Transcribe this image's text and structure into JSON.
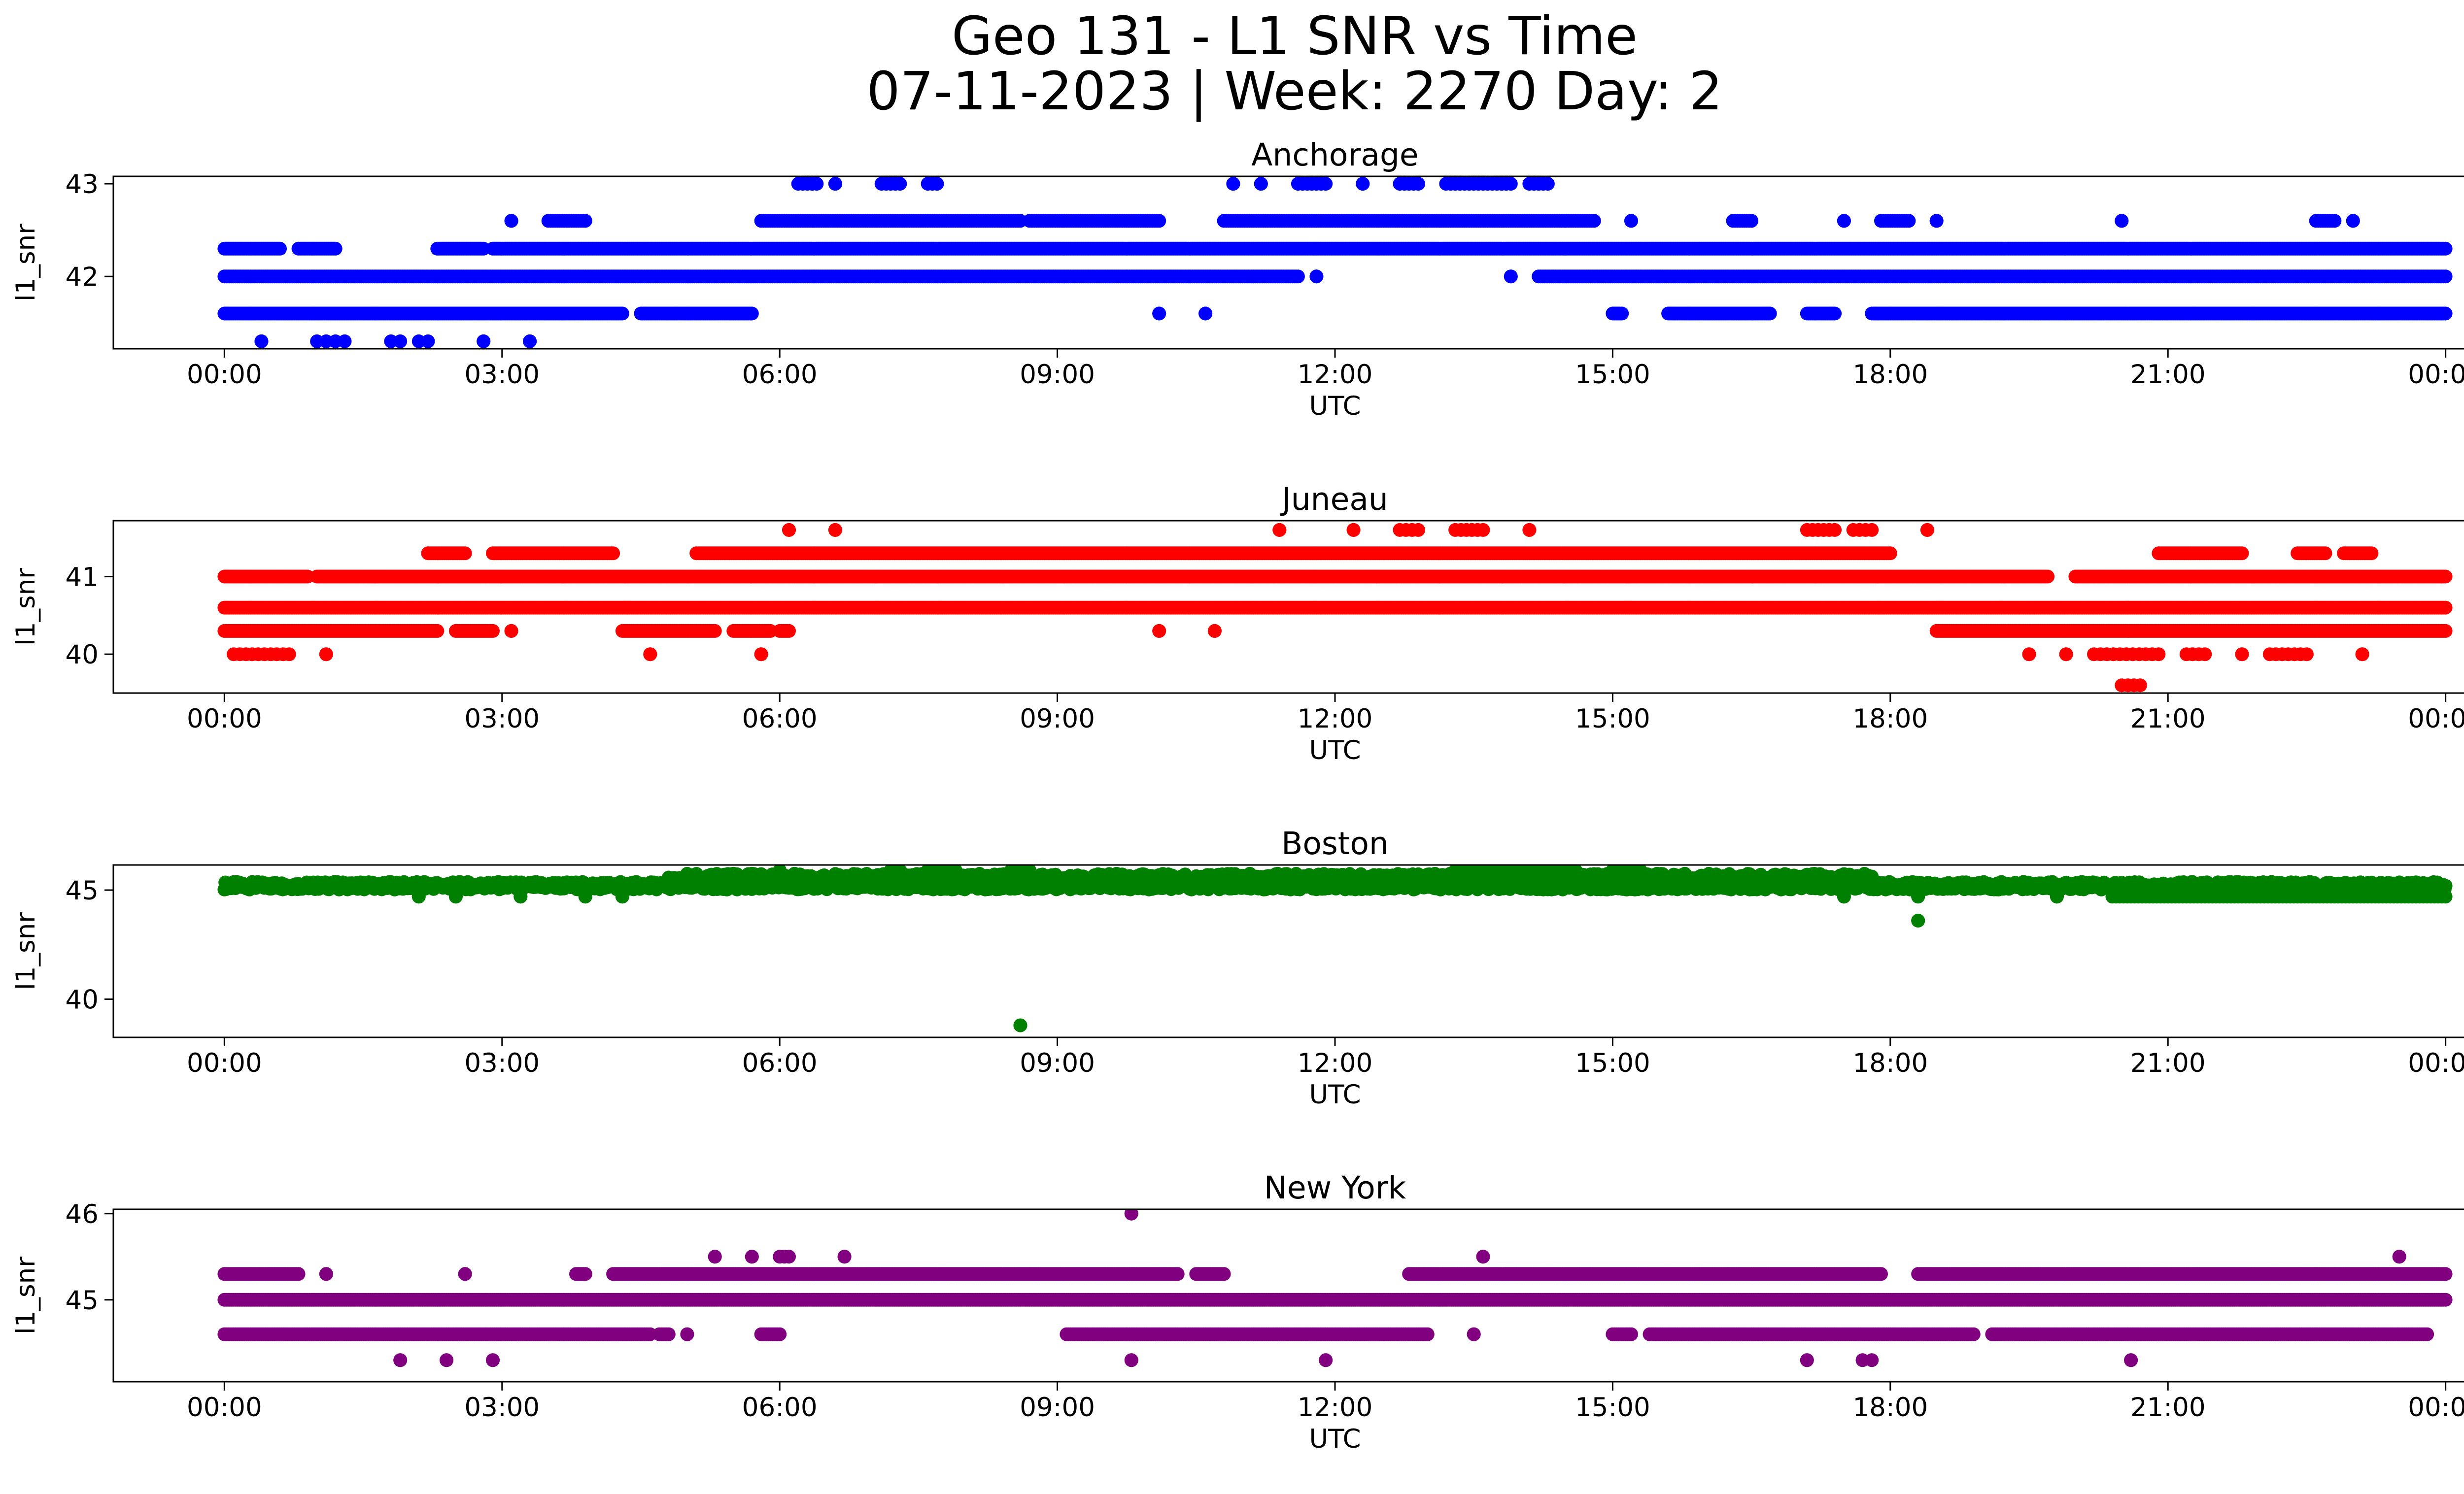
{
  "figure": {
    "title_line1": "Geo 131 - L1 SNR vs Time",
    "title_line2": "07-11-2023 | Week: 2270 Day: 2"
  },
  "chart_data": [
    {
      "type": "scatter",
      "title": "Anchorage",
      "xlabel": "UTC",
      "ylabel": "l1_snr",
      "color": "#0000ff",
      "x_ticks": [
        "00:00",
        "03:00",
        "06:00",
        "09:00",
        "12:00",
        "15:00",
        "18:00",
        "21:00",
        "00:00"
      ],
      "xlim_hours": [
        -1.2,
        25.2
      ],
      "y_ticks": [
        42,
        43
      ],
      "ylim": [
        41.22,
        43.08
      ],
      "levels": [
        {
          "y": 41.6,
          "segments": [
            [
              0.0,
              4.3
            ],
            [
              4.5,
              5.7
            ],
            [
              10.1,
              10.1
            ],
            [
              10.6,
              10.6
            ],
            [
              15.0,
              15.1
            ],
            [
              15.6,
              16.7
            ],
            [
              17.1,
              17.4
            ],
            [
              17.8,
              24.0
            ]
          ],
          "step": 0.02
        },
        {
          "y": 42.0,
          "segments": [
            [
              0.0,
              11.6
            ],
            [
              11.8,
              11.8
            ],
            [
              13.9,
              13.9
            ],
            [
              14.2,
              24.0
            ]
          ],
          "step": 0.02
        },
        {
          "y": 42.3,
          "segments": [
            [
              0.0,
              0.6
            ],
            [
              0.8,
              1.2
            ],
            [
              2.3,
              2.8
            ],
            [
              2.9,
              24.0
            ]
          ],
          "step": 0.02
        },
        {
          "y": 42.6,
          "segments": [
            [
              3.1,
              3.1
            ],
            [
              3.5,
              3.9
            ],
            [
              5.8,
              8.6
            ],
            [
              8.7,
              10.1
            ],
            [
              10.8,
              14.8
            ],
            [
              15.2,
              15.2
            ],
            [
              16.3,
              16.5
            ],
            [
              17.5,
              17.5
            ],
            [
              17.9,
              18.2
            ],
            [
              18.5,
              18.5
            ],
            [
              20.5,
              20.5
            ],
            [
              22.6,
              22.8
            ],
            [
              23.0,
              23.0
            ]
          ],
          "step": 0.025
        },
        {
          "y": 43.0,
          "segments": [
            [
              6.2,
              6.4
            ],
            [
              6.6,
              6.6
            ],
            [
              7.1,
              7.3
            ],
            [
              7.6,
              7.7
            ],
            [
              10.9,
              10.9
            ],
            [
              11.2,
              11.2
            ],
            [
              11.6,
              11.9
            ],
            [
              12.3,
              12.3
            ],
            [
              12.7,
              12.9
            ],
            [
              13.2,
              13.9
            ],
            [
              14.1,
              14.3
            ]
          ],
          "step": 0.05
        },
        {
          "y": 41.3,
          "segments": [
            [
              0.4,
              0.4
            ],
            [
              1.0,
              1.3
            ],
            [
              1.8,
              1.9
            ],
            [
              2.1,
              2.2
            ],
            [
              2.8,
              2.8
            ],
            [
              3.3,
              3.3
            ]
          ],
          "step": 0.1
        }
      ]
    },
    {
      "type": "scatter",
      "title": "Juneau",
      "xlabel": "UTC",
      "ylabel": "l1_snr",
      "color": "#ff0000",
      "x_ticks": [
        "00:00",
        "03:00",
        "06:00",
        "09:00",
        "12:00",
        "15:00",
        "18:00",
        "21:00",
        "00:00"
      ],
      "xlim_hours": [
        -1.2,
        25.2
      ],
      "y_ticks": [
        40,
        41
      ],
      "ylim": [
        39.5,
        41.72
      ],
      "levels": [
        {
          "y": 40.3,
          "segments": [
            [
              0.0,
              2.3
            ],
            [
              2.5,
              2.9
            ],
            [
              3.1,
              3.1
            ],
            [
              4.3,
              5.3
            ],
            [
              5.5,
              5.9
            ],
            [
              6.0,
              6.1
            ],
            [
              10.1,
              10.1
            ],
            [
              10.7,
              10.7
            ],
            [
              18.5,
              24.0
            ]
          ],
          "step": 0.02
        },
        {
          "y": 40.6,
          "segments": [
            [
              0.0,
              24.0
            ]
          ],
          "step": 0.02
        },
        {
          "y": 41.0,
          "segments": [
            [
              0.0,
              0.9
            ],
            [
              1.0,
              19.7
            ],
            [
              20.0,
              24.0
            ]
          ],
          "step": 0.02
        },
        {
          "y": 41.3,
          "segments": [
            [
              2.2,
              2.6
            ],
            [
              2.9,
              4.2
            ],
            [
              5.1,
              18.0
            ],
            [
              20.9,
              21.8
            ],
            [
              22.4,
              22.7
            ],
            [
              22.9,
              23.2
            ]
          ],
          "step": 0.02
        },
        {
          "y": 41.6,
          "segments": [
            [
              6.1,
              6.1
            ],
            [
              6.6,
              6.6
            ],
            [
              11.4,
              11.4
            ],
            [
              12.2,
              12.2
            ],
            [
              12.7,
              12.9
            ],
            [
              13.3,
              13.6
            ],
            [
              14.1,
              14.1
            ],
            [
              17.1,
              17.4
            ],
            [
              17.6,
              17.8
            ],
            [
              18.4,
              18.4
            ]
          ],
          "step": 0.06
        },
        {
          "y": 40.0,
          "segments": [
            [
              0.1,
              0.7
            ],
            [
              1.1,
              1.1
            ],
            [
              4.6,
              4.6
            ],
            [
              5.8,
              5.8
            ],
            [
              19.5,
              19.5
            ],
            [
              19.9,
              19.9
            ],
            [
              20.2,
              20.9
            ],
            [
              21.2,
              21.4
            ],
            [
              21.8,
              21.8
            ],
            [
              22.1,
              22.5
            ],
            [
              23.1,
              23.1
            ]
          ],
          "step": 0.07
        },
        {
          "y": 39.6,
          "segments": [
            [
              20.5,
              20.7
            ]
          ],
          "step": 0.06
        }
      ]
    },
    {
      "type": "scatter",
      "title": "Boston",
      "xlabel": "UTC",
      "ylabel": "l1_snr",
      "color": "#008000",
      "x_ticks": [
        "00:00",
        "03:00",
        "06:00",
        "09:00",
        "12:00",
        "15:00",
        "18:00",
        "21:00",
        "00:00"
      ],
      "xlim_hours": [
        -1.2,
        25.2
      ],
      "y_ticks": [
        40,
        45
      ],
      "ylim": [
        38.25,
        46.15
      ],
      "levels": [
        {
          "y": 45.2,
          "segments": [
            [
              0.0,
              24.0
            ]
          ],
          "step": 0.01,
          "jitter": 0.35
        },
        {
          "y": 45.6,
          "segments": [
            [
              4.8,
              17.8
            ]
          ],
          "step": 0.02,
          "jitter": 0.3
        },
        {
          "y": 45.9,
          "segments": [
            [
              6.0,
              6.0
            ],
            [
              7.2,
              7.3
            ],
            [
              7.6,
              7.9
            ],
            [
              8.5,
              8.7
            ],
            [
              13.3,
              14.6
            ],
            [
              15.0,
              15.3
            ]
          ],
          "step": 0.05
        },
        {
          "y": 44.7,
          "segments": [
            [
              2.1,
              2.1
            ],
            [
              2.5,
              2.5
            ],
            [
              3.2,
              3.2
            ],
            [
              3.9,
              3.9
            ],
            [
              4.3,
              4.3
            ],
            [
              17.5,
              17.5
            ],
            [
              18.3,
              18.3
            ],
            [
              19.8,
              19.8
            ],
            [
              20.4,
              24.0
            ]
          ],
          "step": 0.04
        },
        {
          "y": 43.6,
          "segments": [
            [
              18.3,
              18.3
            ]
          ],
          "step": 1
        },
        {
          "y": 38.8,
          "segments": [
            [
              8.6,
              8.6
            ]
          ],
          "step": 1
        }
      ]
    },
    {
      "type": "scatter",
      "title": "New York",
      "xlabel": "UTC",
      "ylabel": "l1_snr",
      "color": "#800080",
      "x_ticks": [
        "00:00",
        "03:00",
        "06:00",
        "09:00",
        "12:00",
        "15:00",
        "18:00",
        "21:00",
        "00:00"
      ],
      "xlim_hours": [
        -1.2,
        25.2
      ],
      "y_ticks": [
        45,
        46
      ],
      "ylim": [
        44.05,
        46.05
      ],
      "levels": [
        {
          "y": 45.0,
          "segments": [
            [
              0.0,
              24.0
            ]
          ],
          "step": 0.02
        },
        {
          "y": 45.3,
          "segments": [
            [
              0.0,
              0.8
            ],
            [
              1.1,
              1.1
            ],
            [
              2.6,
              2.6
            ],
            [
              3.8,
              3.9
            ],
            [
              4.2,
              10.3
            ],
            [
              10.5,
              10.8
            ],
            [
              12.8,
              17.9
            ],
            [
              18.3,
              24.0
            ]
          ],
          "step": 0.02
        },
        {
          "y": 44.6,
          "segments": [
            [
              0.0,
              4.6
            ],
            [
              4.7,
              4.8
            ],
            [
              5.0,
              5.0
            ],
            [
              5.8,
              6.0
            ],
            [
              9.1,
              13.0
            ],
            [
              13.5,
              13.5
            ],
            [
              15.0,
              15.2
            ],
            [
              15.4,
              18.9
            ],
            [
              19.1,
              23.8
            ]
          ],
          "step": 0.02
        },
        {
          "y": 45.5,
          "segments": [
            [
              5.3,
              5.3
            ],
            [
              5.7,
              5.7
            ],
            [
              6.0,
              6.1
            ],
            [
              6.7,
              6.7
            ],
            [
              13.6,
              13.6
            ],
            [
              23.5,
              23.5
            ]
          ],
          "step": 0.05
        },
        {
          "y": 44.3,
          "segments": [
            [
              1.9,
              1.9
            ],
            [
              2.4,
              2.4
            ],
            [
              2.9,
              2.9
            ],
            [
              9.8,
              9.8
            ],
            [
              11.9,
              11.9
            ],
            [
              17.1,
              17.1
            ],
            [
              17.7,
              17.8
            ],
            [
              20.6,
              20.6
            ]
          ],
          "step": 0.1
        },
        {
          "y": 46.0,
          "segments": [
            [
              9.8,
              9.8
            ]
          ],
          "step": 1
        }
      ]
    }
  ]
}
